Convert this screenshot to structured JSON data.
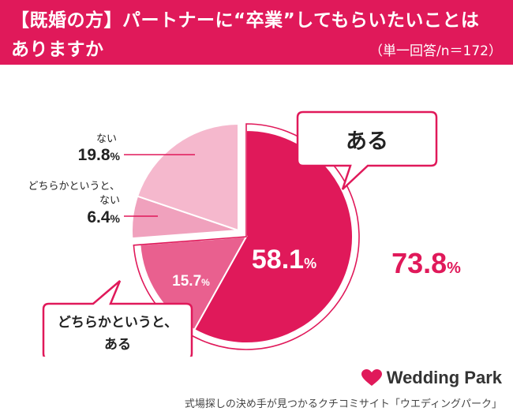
{
  "header": {
    "title_line1": "【既婚の方】パートナーに“卒業”してもらいたいことは",
    "title_line2": "ありますか",
    "subtitle": "（単一回答/n＝172）"
  },
  "chart_data": {
    "type": "pie",
    "title": "【既婚の方】パートナーに“卒業”してもらいたいことはありますか",
    "subtitle": "（単一回答/n＝172）",
    "unit": "%",
    "slices": [
      {
        "label": "ある",
        "value": 58.1,
        "color": "#e0195a"
      },
      {
        "label": "どちらかというと、ある",
        "value": 15.7,
        "color": "#e9608f"
      },
      {
        "label": "どちらかというと、ない",
        "value": 6.4,
        "color": "#f0a1bd"
      },
      {
        "label": "ない",
        "value": 19.8,
        "color": "#f5b8cd"
      }
    ],
    "combined": {
      "label": "ある + どちらかというと、ある",
      "value": 73.8,
      "display": "73.8"
    }
  },
  "labels": {
    "yes_callout": "ある",
    "somewhat_yes_line1": "どちらかというと、",
    "somewhat_yes_line2": "ある",
    "somewhat_no_line1": "どちらかというと、",
    "somewhat_no_line2": "ない",
    "no_label": "ない",
    "percent_sign": "%"
  },
  "brand": {
    "name": "Wedding Park",
    "color": "#e0195a"
  },
  "footer": "式場探しの決め手が見つかるクチコミサイト「ウエディングパーク」"
}
